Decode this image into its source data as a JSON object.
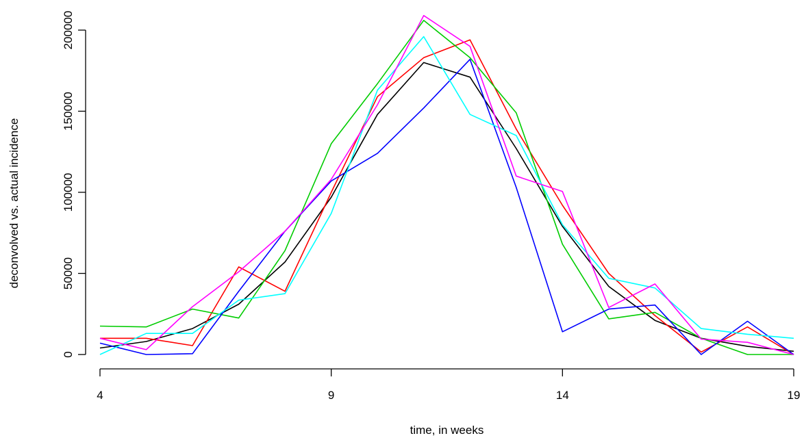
{
  "chart_data": {
    "type": "line",
    "title": "",
    "xlabel": "time, in weeks",
    "ylabel": "deconvolved vs. actual incidence",
    "xlim": [
      4,
      19
    ],
    "ylim": [
      0,
      200000
    ],
    "xticks": [
      4,
      9,
      14,
      19
    ],
    "yticks": [
      0,
      50000,
      100000,
      150000,
      200000
    ],
    "x": [
      4,
      5,
      6,
      7,
      8,
      9,
      10,
      11,
      12,
      13,
      14,
      15,
      16,
      17,
      18,
      19
    ],
    "grid": false,
    "legend": "none",
    "series": [
      {
        "color": "#000000",
        "values": [
          4000,
          8000,
          16000,
          31000,
          57000,
          97000,
          148000,
          180000,
          171000,
          127000,
          79000,
          42000,
          21000,
          10000,
          5000,
          2000
        ]
      },
      {
        "color": "#FF0000",
        "values": [
          10000,
          10000,
          5500,
          54000,
          39000,
          100000,
          159000,
          183000,
          194000,
          139000,
          92000,
          50000,
          24000,
          1500,
          17000,
          0
        ]
      },
      {
        "color": "#00CC00",
        "values": [
          17500,
          17000,
          28000,
          22500,
          64000,
          130000,
          167000,
          206000,
          183000,
          149000,
          68000,
          22000,
          26000,
          10000,
          0,
          0
        ]
      },
      {
        "color": "#0000FF",
        "values": [
          7000,
          0,
          500,
          39000,
          76000,
          107000,
          124000,
          152000,
          182000,
          103000,
          14000,
          28000,
          30500,
          0,
          20500,
          0
        ]
      },
      {
        "color": "#00FFFF",
        "values": [
          0,
          13000,
          13000,
          33500,
          37500,
          87000,
          163000,
          196000,
          148000,
          135000,
          80000,
          47000,
          41000,
          16000,
          12500,
          10000
        ]
      },
      {
        "color": "#FF00FF",
        "values": [
          10000,
          3000,
          29500,
          51000,
          76000,
          108000,
          154000,
          209000,
          190000,
          110000,
          100500,
          29000,
          43500,
          9500,
          7500,
          0
        ]
      }
    ]
  }
}
